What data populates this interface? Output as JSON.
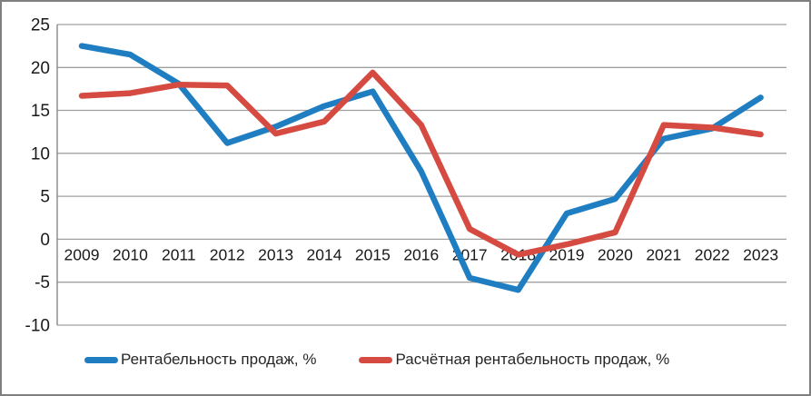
{
  "window": {
    "background": "#ffffff",
    "frame_border_color": "#7f7f7f"
  },
  "chart_data": {
    "type": "line",
    "title": "",
    "x": [
      "2009",
      "2010",
      "2011",
      "2012",
      "2013",
      "2014",
      "2015",
      "2016",
      "2017",
      "2018",
      "2019",
      "2020",
      "2021",
      "2022",
      "2023"
    ],
    "series": [
      {
        "name": "Рентабельность продаж, %",
        "color": "#1f7ec2",
        "values": [
          22.5,
          21.5,
          18.1,
          11.2,
          13.1,
          15.5,
          17.2,
          7.9,
          -4.5,
          -5.9,
          3.0,
          4.7,
          11.7,
          12.9,
          16.5
        ]
      },
      {
        "name": "Расчётная рентабельность продаж, %",
        "color": "#d54b42",
        "values": [
          16.7,
          17.0,
          18.0,
          17.9,
          12.3,
          13.7,
          19.4,
          13.3,
          1.2,
          -1.8,
          -0.6,
          0.8,
          13.3,
          13.0,
          12.2
        ]
      }
    ],
    "ylim": [
      -10,
      25
    ],
    "yticks": [
      25,
      20,
      15,
      10,
      5,
      0,
      -5,
      -10
    ],
    "grid": "horizontal",
    "gridline_color": "#a0a0a0",
    "axis_line_color": "#808080",
    "legend_position": "bottom",
    "line_width": 6.5
  }
}
